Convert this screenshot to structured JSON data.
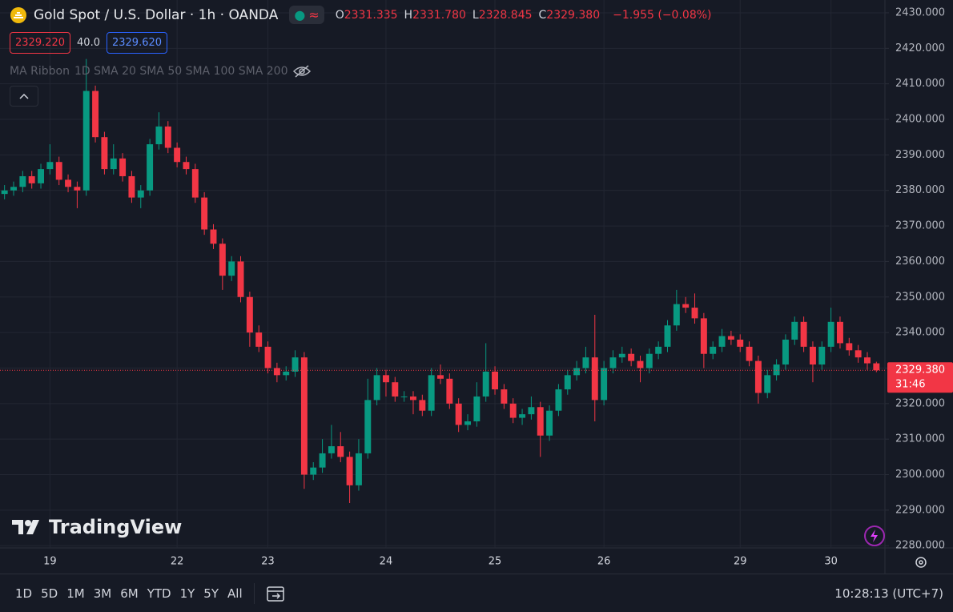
{
  "header": {
    "title": "Gold Spot / U.S. Dollar · 1h · OANDA",
    "ohlc": [
      {
        "label": "O",
        "value": "2331.335"
      },
      {
        "label": "H",
        "value": "2331.780"
      },
      {
        "label": "L",
        "value": "2328.845"
      },
      {
        "label": "C",
        "value": "2329.380"
      }
    ],
    "change": "−1.955 (−0.08%)",
    "sell_price": "2329.220",
    "spread": "40.0",
    "buy_price": "2329.620",
    "indicator_name": "MA Ribbon",
    "indicator_params": "1D SMA 20 SMA 50 SMA 100 SMA 200"
  },
  "chart_data": {
    "type": "candlestick",
    "up_color": "#089981",
    "down_color": "#f23645",
    "grid": true,
    "categories": [
      null,
      null,
      null,
      null,
      null,
      "19",
      null,
      null,
      null,
      null,
      null,
      null,
      null,
      null,
      null,
      null,
      null,
      null,
      null,
      "22",
      null,
      null,
      null,
      null,
      null,
      null,
      null,
      null,
      null,
      "23",
      null,
      null,
      null,
      null,
      null,
      null,
      null,
      null,
      null,
      null,
      null,
      null,
      "24",
      null,
      null,
      null,
      null,
      null,
      null,
      null,
      null,
      null,
      null,
      null,
      "25",
      null,
      null,
      null,
      null,
      null,
      null,
      null,
      null,
      null,
      null,
      null,
      "26",
      null,
      null,
      null,
      null,
      null,
      null,
      null,
      null,
      null,
      null,
      null,
      null,
      null,
      null,
      "29",
      null,
      null,
      null,
      null,
      null,
      null,
      null,
      null,
      null,
      "30",
      null,
      null,
      null,
      null,
      null
    ],
    "open": [
      2379,
      2380,
      2381,
      2384,
      2382,
      2386,
      2388,
      2383,
      2381,
      2380,
      2408,
      2395,
      2386,
      2389,
      2384,
      2378,
      2380,
      2393,
      2398,
      2392,
      2388,
      2386,
      2378,
      2369,
      2365,
      2356,
      2360,
      2350,
      2340,
      2336,
      2330,
      2328,
      2329,
      2333,
      2300,
      2302,
      2306,
      2308,
      2305,
      2297,
      2306,
      2321,
      2328,
      2326,
      2322,
      2322,
      2321,
      2318,
      2328,
      2327,
      2320,
      2314,
      2315,
      2322,
      2329,
      2324,
      2320,
      2316,
      2317,
      2319,
      2311,
      2318,
      2324,
      2328,
      2330,
      2333,
      2321,
      2330,
      2333,
      2334,
      2332,
      2330,
      2334,
      2336,
      2342,
      2348,
      2347,
      2344,
      2334,
      2336,
      2339,
      2338,
      2336,
      2332,
      2323,
      2328,
      2331,
      2338,
      2343,
      2336,
      2331,
      2336,
      2343,
      2337,
      2335,
      2333,
      2331.335
    ],
    "high": [
      2381.5,
      2382.5,
      2385.5,
      2385.5,
      2387.5,
      2393,
      2389.5,
      2384.5,
      2382.5,
      2417,
      2409.5,
      2396.5,
      2393,
      2390.5,
      2385.5,
      2381.5,
      2394.5,
      2402,
      2399.5,
      2393.5,
      2389.5,
      2387.5,
      2379.5,
      2370.5,
      2366.5,
      2361.5,
      2361.5,
      2351.5,
      2342,
      2337.5,
      2331.5,
      2330.5,
      2335,
      2334.5,
      2303.5,
      2310,
      2314,
      2312,
      2306.5,
      2310,
      2327,
      2330,
      2329.5,
      2327.5,
      2323.5,
      2323.5,
      2322.5,
      2330,
      2331,
      2328.5,
      2321.5,
      2317,
      2326,
      2337,
      2330.5,
      2325.5,
      2321.5,
      2318.5,
      2322,
      2320.5,
      2319.5,
      2325.5,
      2329.5,
      2332,
      2336,
      2345,
      2332,
      2335,
      2336,
      2335.5,
      2333.5,
      2335.5,
      2337.5,
      2343.5,
      2352,
      2350,
      2351,
      2345.5,
      2337.5,
      2341,
      2340.5,
      2339.5,
      2337.5,
      2333.5,
      2329.5,
      2332.5,
      2339.5,
      2344.5,
      2344.5,
      2337.5,
      2337.5,
      2347,
      2344.5,
      2338.5,
      2336.5,
      2334.5,
      2331.78
    ],
    "low": [
      2377.5,
      2378.5,
      2379.5,
      2380.5,
      2380.5,
      2384.5,
      2381.5,
      2379.5,
      2375,
      2378.5,
      2393.5,
      2384.5,
      2384.5,
      2382.5,
      2376.5,
      2375,
      2378.5,
      2391.5,
      2390.5,
      2386.5,
      2384.5,
      2376.5,
      2367.5,
      2363.5,
      2352,
      2354.5,
      2348.5,
      2336,
      2334.5,
      2328.5,
      2326,
      2326.5,
      2327.5,
      2296,
      2298.5,
      2300.5,
      2304.5,
      2303.5,
      2292,
      2295.5,
      2304.5,
      2319.5,
      2322,
      2320.5,
      2320.5,
      2317,
      2316.5,
      2316.5,
      2325.5,
      2318.5,
      2312,
      2312.5,
      2313.5,
      2320.5,
      2322.5,
      2318.5,
      2314.5,
      2314,
      2315.5,
      2305,
      2309.5,
      2316.5,
      2322.5,
      2326.5,
      2328.5,
      2315,
      2319.5,
      2328.5,
      2331.5,
      2330.5,
      2326,
      2328.5,
      2332.5,
      2334.5,
      2340.5,
      2345.5,
      2342.5,
      2330,
      2332.5,
      2334.5,
      2336.5,
      2334.5,
      2330.5,
      2320,
      2321.5,
      2326.5,
      2329.5,
      2336.5,
      2334.5,
      2326,
      2329.5,
      2334.5,
      2335.5,
      2333.5,
      2331.5,
      2329.5,
      2328.845
    ],
    "close": [
      2380,
      2381,
      2384,
      2382,
      2386,
      2388,
      2383,
      2381,
      2380,
      2408,
      2395,
      2386,
      2389,
      2384,
      2378,
      2380,
      2393,
      2398,
      2392,
      2388,
      2386,
      2378,
      2369,
      2365,
      2356,
      2360,
      2350,
      2340,
      2336,
      2330,
      2328,
      2329,
      2333,
      2300,
      2302,
      2306,
      2308,
      2305,
      2297,
      2306,
      2321,
      2328,
      2326,
      2322,
      2322,
      2321,
      2318,
      2328,
      2327,
      2320,
      2314,
      2315,
      2322,
      2329,
      2324,
      2320,
      2316,
      2317,
      2319,
      2311,
      2318,
      2324,
      2328,
      2330,
      2333,
      2321,
      2330,
      2333,
      2334,
      2332,
      2330,
      2334,
      2336,
      2342,
      2348,
      2347,
      2344,
      2334,
      2336,
      2339,
      2338,
      2336,
      2332,
      2323,
      2328,
      2331,
      2338,
      2343,
      2336,
      2331,
      2336,
      2343,
      2337,
      2335,
      2333,
      2331.335,
      2329.38
    ],
    "ylim": [
      2279.6,
      2433.6
    ],
    "yticks": [
      {
        "value": 2280,
        "label": "2280.000"
      },
      {
        "value": 2290,
        "label": "2290.000"
      },
      {
        "value": 2300,
        "label": "2300.000"
      },
      {
        "value": 2310,
        "label": "2310.000"
      },
      {
        "value": 2320,
        "label": "2320.000"
      },
      {
        "value": 2330,
        "label": "2330.000"
      },
      {
        "value": 2340,
        "label": "2340.000"
      },
      {
        "value": 2350,
        "label": "2350.000"
      },
      {
        "value": 2360,
        "label": "2360.000"
      },
      {
        "value": 2370,
        "label": "2370.000"
      },
      {
        "value": 2380,
        "label": "2380.000"
      },
      {
        "value": 2390,
        "label": "2390.000"
      },
      {
        "value": 2400,
        "label": "2400.000"
      },
      {
        "value": 2410,
        "label": "2410.000"
      },
      {
        "value": 2420,
        "label": "2420.000"
      },
      {
        "value": 2430,
        "label": "2430.000"
      }
    ],
    "last_price_label": "2329.380",
    "countdown": "31:46"
  },
  "watermark": "TradingView",
  "toolbar": {
    "ranges": [
      "1D",
      "5D",
      "1M",
      "3M",
      "6M",
      "YTD",
      "1Y",
      "5Y",
      "All"
    ],
    "clock": "10:28:13 (UTC+7)"
  }
}
